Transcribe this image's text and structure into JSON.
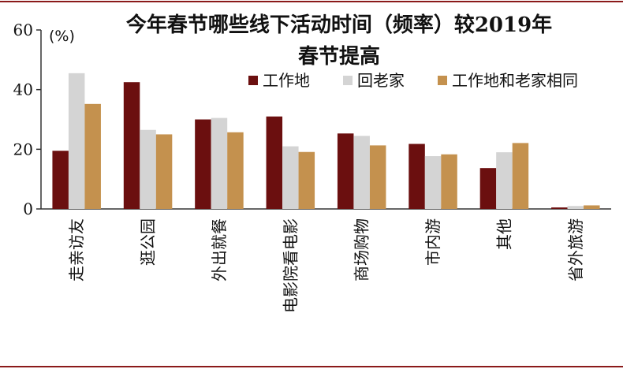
{
  "chart_data": {
    "type": "bar",
    "title_lines": [
      "今年春节哪些线下活动时间（频率）较2019年",
      "春节提高"
    ],
    "unit": "(%)",
    "ylim": [
      0,
      60
    ],
    "yticks": [
      0,
      20,
      40,
      60
    ],
    "grid": false,
    "legend_placement": "top-right",
    "categories": [
      "走亲访友",
      "逛公园",
      "外出就餐",
      "电影院看电影",
      "商场购物",
      "市内游",
      "其他",
      "省外旅游"
    ],
    "series": [
      {
        "name": "工作地",
        "color": "#6b0f0f",
        "values": [
          19.5,
          42.5,
          30,
          31,
          25.3,
          21.8,
          13.7,
          0.5
        ]
      },
      {
        "name": "回老家",
        "color": "#d4d4d4",
        "values": [
          45.5,
          26.5,
          30.5,
          21,
          24.5,
          17.7,
          19,
          1
        ]
      },
      {
        "name": "工作地和老家相同",
        "color": "#c4914e",
        "values": [
          35.2,
          25,
          25.7,
          19.1,
          21.3,
          18.3,
          22.1,
          1.2
        ]
      }
    ]
  }
}
